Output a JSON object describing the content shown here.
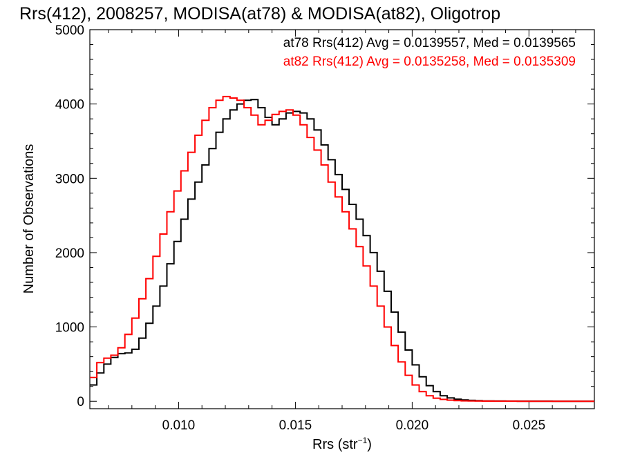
{
  "chart_data": {
    "type": "line",
    "title": "Rrs(412), 2008257, MODISA(at78) & MODISA(at82), Oligotrop",
    "xlabel": "Rrs (str",
    "xlabel_sup": "−1",
    "xlabel_close": ")",
    "ylabel": "Number of Observations",
    "xlim": [
      0.0062,
      0.0278
    ],
    "ylim": [
      -100,
      5000
    ],
    "x_ticks": [
      0.01,
      0.015,
      0.02,
      0.025
    ],
    "x_tick_labels": [
      "0.010",
      "0.015",
      "0.020",
      "0.025"
    ],
    "y_ticks": [
      0,
      1000,
      2000,
      3000,
      4000,
      5000
    ],
    "y_tick_labels": [
      "0",
      "1000",
      "2000",
      "3000",
      "4000",
      "5000"
    ],
    "grid": false,
    "line_style": "histogram-step",
    "annotations": [
      {
        "text": "at78 Rrs(412) Avg = 0.0139557, Med = 0.0139565",
        "color": "#000000"
      },
      {
        "text": "at82 Rrs(412) Avg = 0.0135258, Med = 0.0135309",
        "color": "#ff0000"
      }
    ],
    "series": [
      {
        "color": "#000000",
        "x": [
          0.0062,
          0.0065,
          0.0068,
          0.0071,
          0.0074,
          0.0077,
          0.008,
          0.0083,
          0.0086,
          0.0089,
          0.0092,
          0.0095,
          0.0098,
          0.0101,
          0.0104,
          0.0107,
          0.011,
          0.0113,
          0.0116,
          0.0119,
          0.0122,
          0.0125,
          0.0128,
          0.0131,
          0.0134,
          0.0137,
          0.014,
          0.0143,
          0.0146,
          0.0149,
          0.0152,
          0.0155,
          0.0158,
          0.0161,
          0.0164,
          0.0167,
          0.017,
          0.0173,
          0.0176,
          0.0179,
          0.0182,
          0.0185,
          0.0188,
          0.0191,
          0.0194,
          0.0197,
          0.02,
          0.0203,
          0.0206,
          0.0209,
          0.0212,
          0.0215,
          0.0218,
          0.0221,
          0.0224,
          0.0227,
          0.023,
          0.0235,
          0.024,
          0.0245,
          0.025,
          0.026,
          0.0278
        ],
        "y": [
          220,
          380,
          500,
          590,
          640,
          650,
          700,
          850,
          1050,
          1280,
          1550,
          1850,
          2150,
          2450,
          2720,
          2950,
          3180,
          3400,
          3620,
          3800,
          3920,
          4000,
          4050,
          4060,
          3950,
          3820,
          3720,
          3800,
          3880,
          3900,
          3880,
          3800,
          3650,
          3450,
          3250,
          3050,
          2850,
          2650,
          2450,
          2230,
          2000,
          1750,
          1480,
          1200,
          930,
          690,
          490,
          330,
          210,
          130,
          75,
          45,
          28,
          18,
          12,
          8,
          5,
          3,
          2,
          1,
          1,
          0,
          0
        ]
      },
      {
        "color": "#ff0000",
        "x": [
          0.0062,
          0.0065,
          0.0068,
          0.0071,
          0.0074,
          0.0077,
          0.008,
          0.0083,
          0.0086,
          0.0089,
          0.0092,
          0.0095,
          0.0098,
          0.0101,
          0.0104,
          0.0107,
          0.011,
          0.0113,
          0.0116,
          0.0119,
          0.0122,
          0.0125,
          0.0128,
          0.0131,
          0.0134,
          0.0137,
          0.014,
          0.0143,
          0.0146,
          0.0149,
          0.0152,
          0.0155,
          0.0158,
          0.0161,
          0.0164,
          0.0167,
          0.017,
          0.0173,
          0.0176,
          0.0179,
          0.0182,
          0.0185,
          0.0188,
          0.0191,
          0.0194,
          0.0197,
          0.02,
          0.0203,
          0.0206,
          0.0209,
          0.0212,
          0.0215,
          0.0218,
          0.0221,
          0.0224,
          0.0227,
          0.023,
          0.0235,
          0.024,
          0.0245,
          0.025,
          0.026,
          0.0278
        ],
        "y": [
          320,
          520,
          580,
          620,
          720,
          900,
          1120,
          1380,
          1650,
          1950,
          2250,
          2550,
          2830,
          3100,
          3350,
          3580,
          3780,
          3950,
          4050,
          4100,
          4080,
          4050,
          3950,
          3850,
          3720,
          3780,
          3860,
          3900,
          3920,
          3850,
          3720,
          3550,
          3380,
          3180,
          2950,
          2750,
          2550,
          2320,
          2080,
          1820,
          1550,
          1280,
          1000,
          750,
          530,
          350,
          220,
          130,
          75,
          42,
          25,
          15,
          9,
          6,
          4,
          3,
          2,
          1,
          1,
          0,
          0,
          0,
          0
        ]
      }
    ]
  }
}
